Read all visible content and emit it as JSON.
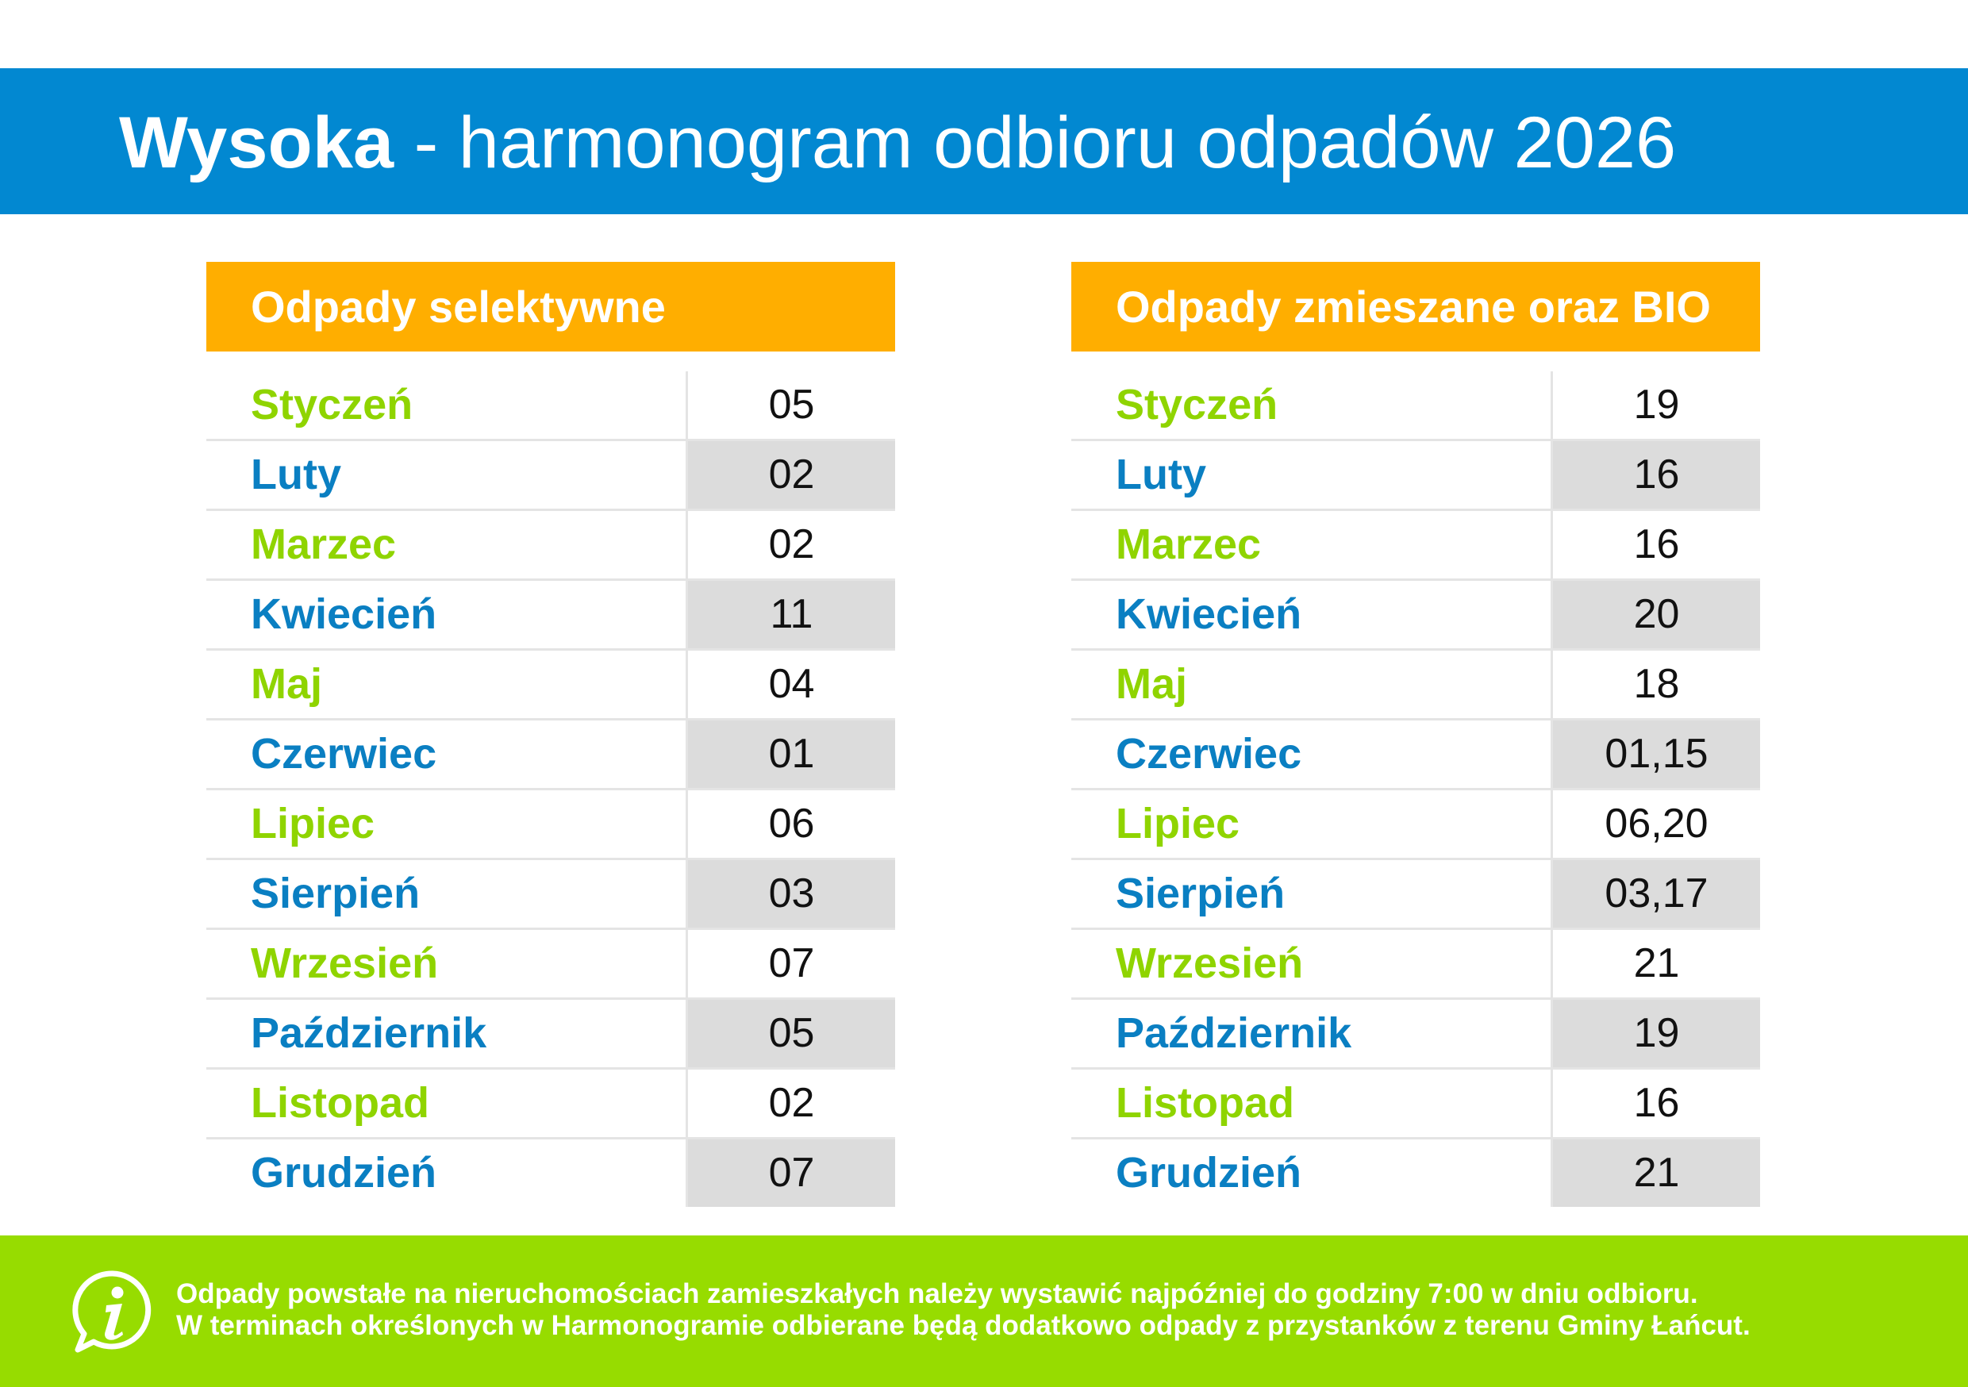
{
  "header": {
    "title_bold": "Wysoka",
    "title_rest": " - harmonogram odbioru odpadów 2026"
  },
  "tables": [
    {
      "heading": "Odpady selektywne",
      "rows": [
        {
          "month": "Styczeń",
          "date": "05"
        },
        {
          "month": "Luty",
          "date": "02"
        },
        {
          "month": "Marzec",
          "date": "02"
        },
        {
          "month": "Kwiecień",
          "date": "11"
        },
        {
          "month": "Maj",
          "date": "04"
        },
        {
          "month": "Czerwiec",
          "date": "01"
        },
        {
          "month": "Lipiec",
          "date": "06"
        },
        {
          "month": "Sierpień",
          "date": "03"
        },
        {
          "month": "Wrzesień",
          "date": "07"
        },
        {
          "month": "Październik",
          "date": "05"
        },
        {
          "month": "Listopad",
          "date": "02"
        },
        {
          "month": "Grudzień",
          "date": "07"
        }
      ]
    },
    {
      "heading": "Odpady zmieszane oraz BIO",
      "rows": [
        {
          "month": "Styczeń",
          "date": "19"
        },
        {
          "month": "Luty",
          "date": "16"
        },
        {
          "month": "Marzec",
          "date": "16"
        },
        {
          "month": "Kwiecień",
          "date": "20"
        },
        {
          "month": "Maj",
          "date": "18"
        },
        {
          "month": "Czerwiec",
          "date": "01,15"
        },
        {
          "month": "Lipiec",
          "date": "06,20"
        },
        {
          "month": "Sierpień",
          "date": "03,17"
        },
        {
          "month": "Wrzesień",
          "date": "21"
        },
        {
          "month": "Październik",
          "date": "19"
        },
        {
          "month": "Listopad",
          "date": "16"
        },
        {
          "month": "Grudzień",
          "date": "21"
        }
      ]
    }
  ],
  "footer": {
    "icon": "info-icon",
    "line1": "Odpady powstałe na nieruchomościach zamieszkałych należy wystawić najpóźniej do godziny 7:00 w dniu odbioru.",
    "line2": "W terminach określonych w Harmonogramie odbierane będą dodatkowo odpady z przystanków z terenu Gminy Łańcut."
  },
  "colors": {
    "title_band": "#0288d1",
    "column_header": "#ffae00",
    "month_green": "#8fd400",
    "month_blue": "#0a7fc2",
    "shaded_cell": "#dcdcdc",
    "footer_band": "#97dc00"
  }
}
